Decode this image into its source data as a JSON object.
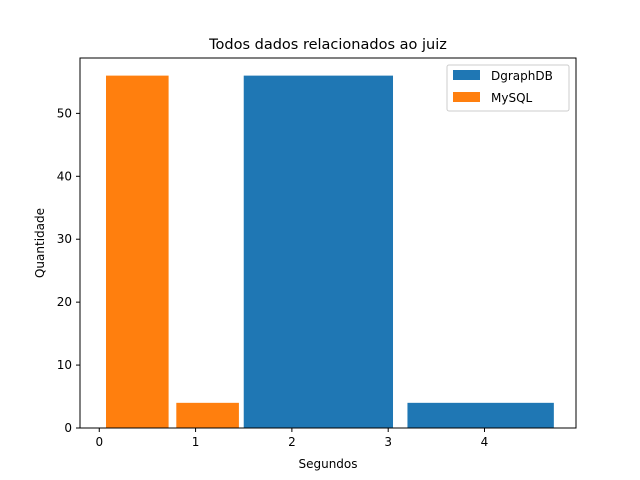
{
  "chart_data": {
    "type": "histogram",
    "title": "Todos dados relacionados ao juiz",
    "xlabel": "Segundos",
    "ylabel": "Quantidade",
    "xlim": [
      -0.2,
      4.95
    ],
    "ylim": [
      0,
      58.8
    ],
    "x_ticks": [
      0,
      1,
      2,
      3,
      4
    ],
    "y_ticks": [
      0,
      10,
      20,
      30,
      40,
      50
    ],
    "legend_position": "top-right",
    "grid": false,
    "series": [
      {
        "name": "DgraphDB",
        "color": "#1f77b4",
        "bins": [
          {
            "x0": 1.5,
            "x1": 3.05,
            "value": 56
          },
          {
            "x0": 3.2,
            "x1": 4.72,
            "value": 4
          }
        ]
      },
      {
        "name": "MySQL",
        "color": "#ff7f0e",
        "bins": [
          {
            "x0": 0.07,
            "x1": 0.72,
            "value": 56
          },
          {
            "x0": 0.8,
            "x1": 1.45,
            "value": 4
          }
        ]
      }
    ]
  }
}
